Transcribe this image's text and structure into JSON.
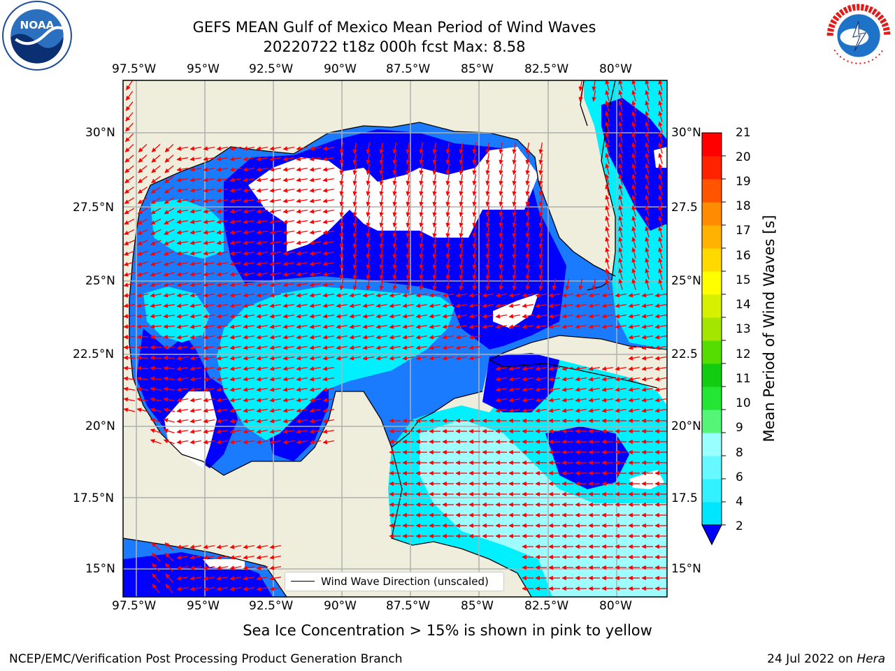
{
  "title_line1": "GEFS MEAN Gulf of Mexico Mean Period of Wind Waves",
  "title_line2": "20220722 t18z 000h fcst   Max: 8.58",
  "lon_labels": [
    "97.5°W",
    "95°W",
    "92.5°W",
    "90°W",
    "87.5°W",
    "85°W",
    "82.5°W",
    "80°W"
  ],
  "lat_labels_left": [
    "30°N",
    "27.5°N",
    "25°N",
    "22.5°N",
    "20°N",
    "17.5°N",
    "15°N"
  ],
  "lat_labels_right": [
    "30°N",
    "27.5",
    "25°N",
    "22.5",
    "20°N",
    "17.5",
    "15°N"
  ],
  "colorbar": {
    "label": "Mean Period of Wind Waves [s]",
    "ticks": [
      "2",
      "4",
      "6",
      "8",
      "9",
      "10",
      "11",
      "12",
      "13",
      "14",
      "15",
      "16",
      "17",
      "18",
      "19",
      "20",
      "21"
    ],
    "colors": [
      "#0a6cff",
      "#00e6ff",
      "#33f2ff",
      "#66f9ff",
      "#99ffff",
      "#55f577",
      "#22e633",
      "#11cc11",
      "#55dd00",
      "#a5e600",
      "#d7f000",
      "#ffff00",
      "#ffd900",
      "#ffb300",
      "#ff8c00",
      "#ff5500",
      "#ff2200",
      "#ff0000"
    ]
  },
  "legend_text": "Wind Wave Direction (unscaled)",
  "ice_note": "Sea Ice Concentration > 15% is shown in pink to yellow",
  "credit": "NCEP/EMC/Verification Post Processing Product Generation Branch",
  "date_text": "24 Jul 2022 on ",
  "date_host": "Hera",
  "logos": {
    "noaa_text": "NOAA",
    "nws_text": "NATIONAL WEATHER SERVICE"
  },
  "map_colors": {
    "land": "#efeedd",
    "blue": "#0000ff",
    "mid": "#1a7bff",
    "cyan": "#00f0ff",
    "light": "#9ffcff",
    "white": "#ffffff",
    "arrow": "#ff0000",
    "grid": "#b0b0b0"
  }
}
